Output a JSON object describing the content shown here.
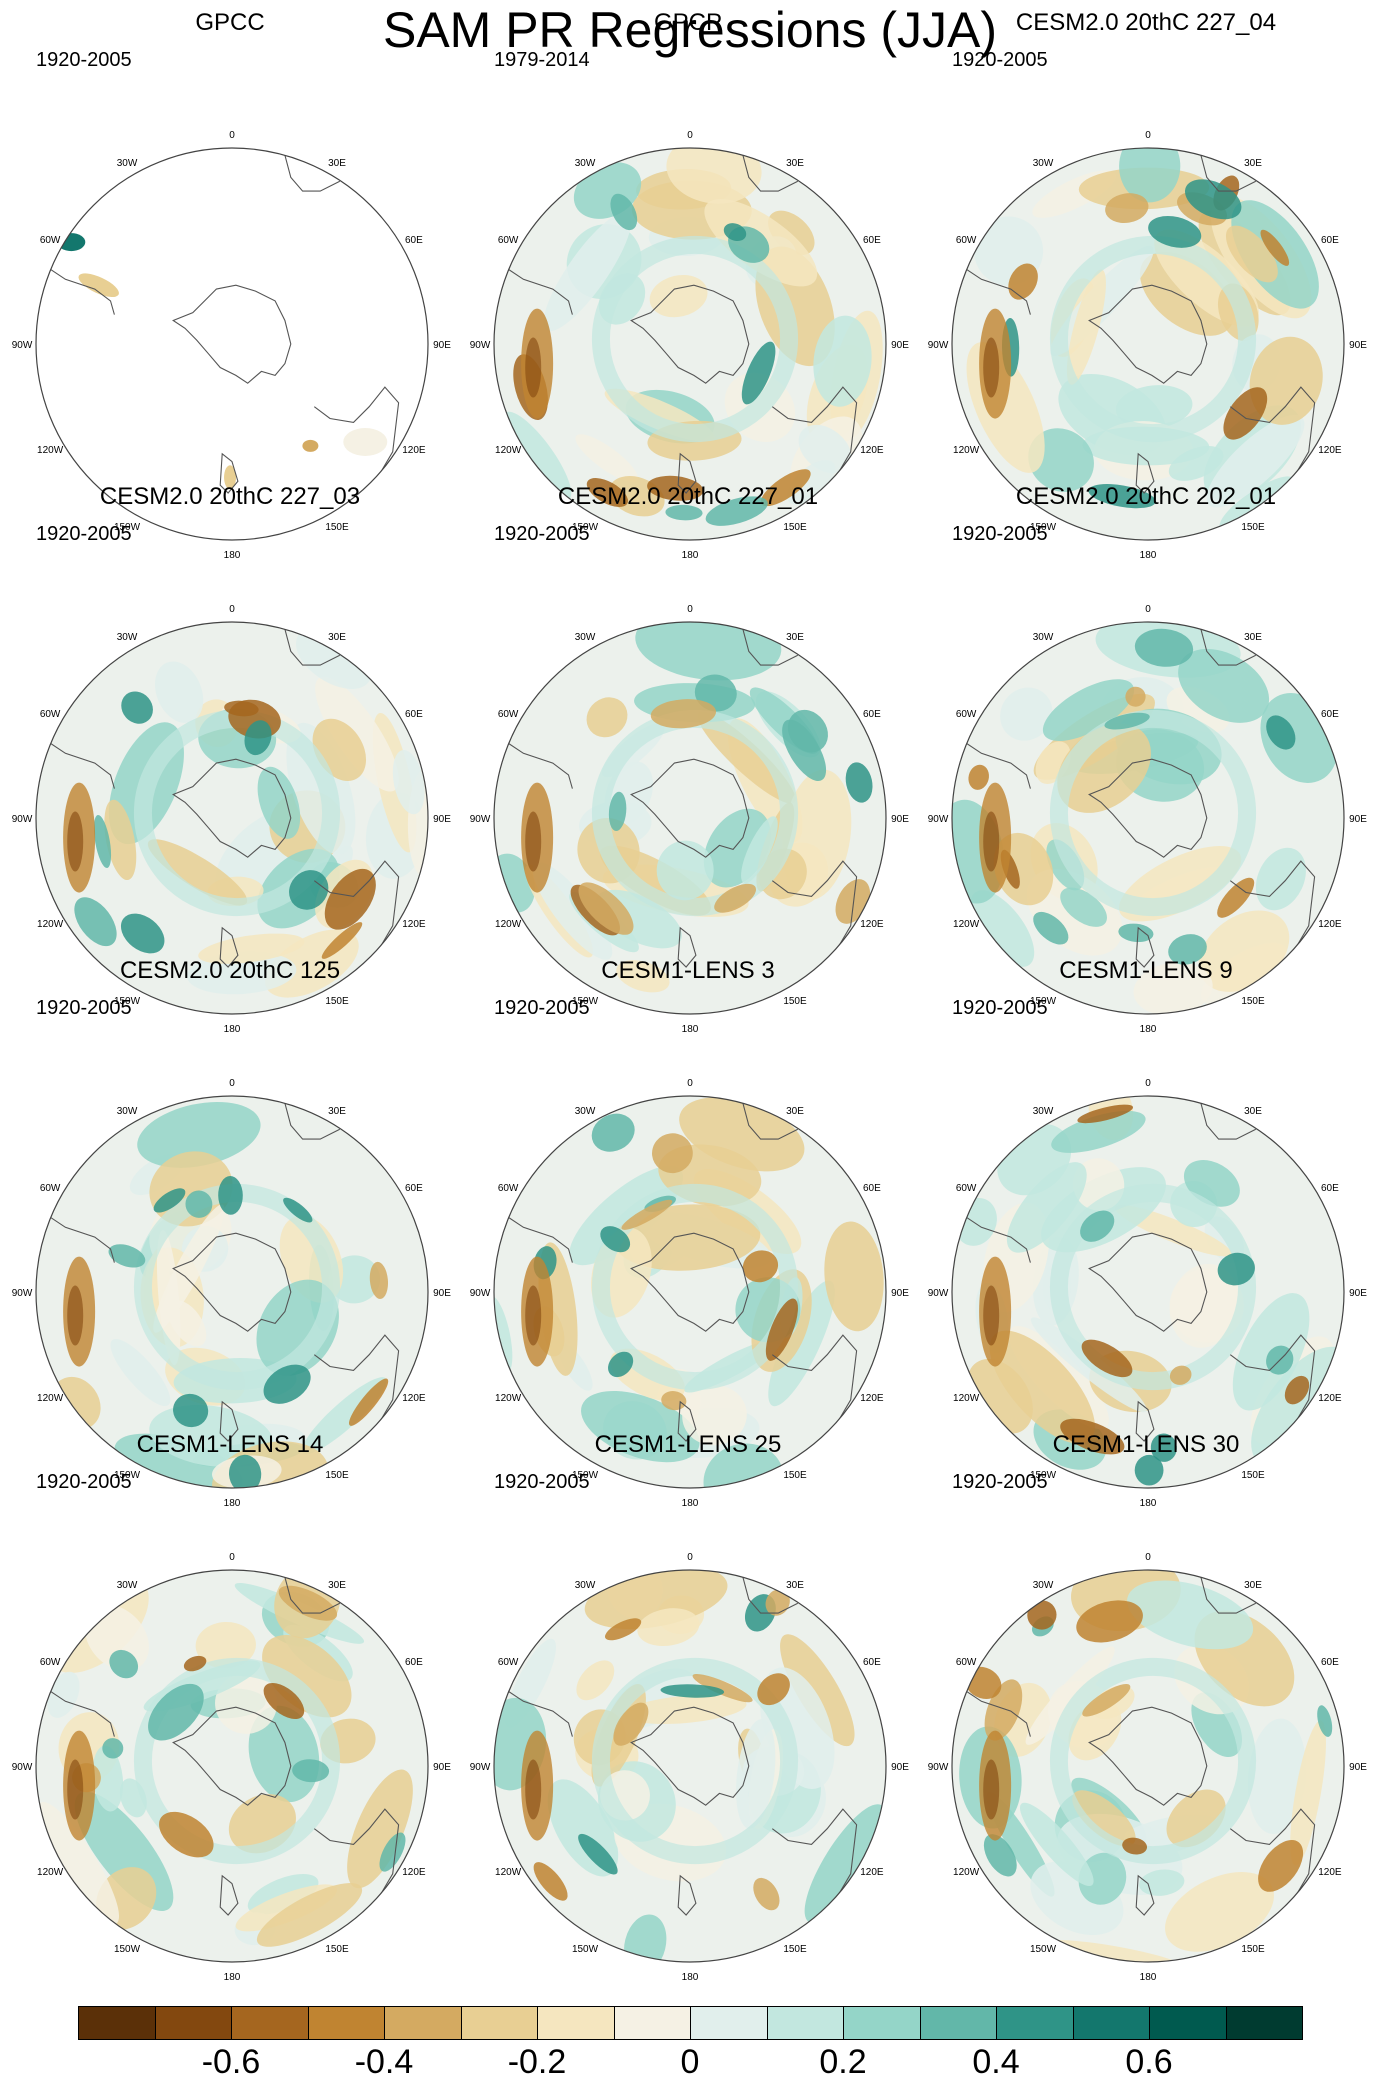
{
  "title": "SAM PR Regressions (JJA)",
  "panels": [
    {
      "title": "GPCC",
      "period": "1920-2005",
      "ocean_data": false
    },
    {
      "title": "GPCP",
      "period": "1979-2014",
      "ocean_data": true
    },
    {
      "title": "CESM2.0 20thC 227_04",
      "period": "1920-2005",
      "ocean_data": true
    },
    {
      "title": "CESM2.0 20thC 227_03",
      "period": "1920-2005",
      "ocean_data": true
    },
    {
      "title": "CESM2.0 20thC 227_01",
      "period": "1920-2005",
      "ocean_data": true
    },
    {
      "title": "CESM2.0 20thC 202_01",
      "period": "1920-2005",
      "ocean_data": true
    },
    {
      "title": "CESM2.0 20thC 125",
      "period": "1920-2005",
      "ocean_data": true
    },
    {
      "title": "CESM1-LENS 3",
      "period": "1920-2005",
      "ocean_data": true
    },
    {
      "title": "CESM1-LENS 9",
      "period": "1920-2005",
      "ocean_data": true
    },
    {
      "title": "CESM1-LENS 14",
      "period": "1920-2005",
      "ocean_data": true
    },
    {
      "title": "CESM1-LENS 25",
      "period": "1920-2005",
      "ocean_data": true
    },
    {
      "title": "CESM1-LENS 30",
      "period": "1920-2005",
      "ocean_data": true
    }
  ],
  "longitude_labels": [
    "0",
    "30E",
    "60E",
    "90E",
    "120E",
    "150E",
    "180",
    "150W",
    "120W",
    "90W",
    "60W",
    "30W"
  ],
  "colorbar": {
    "colors": [
      "#5b3008",
      "#83480f",
      "#a5661f",
      "#c08431",
      "#d4aa61",
      "#e8cf93",
      "#f5e6bf",
      "#f5f1e4",
      "#e1efec",
      "#c2e7df",
      "#94d5c8",
      "#62b7a9",
      "#2f9487",
      "#13776d",
      "#005a4f",
      "#003b30"
    ],
    "tick_labels": [
      "-0.6",
      "-0.4",
      "-0.2",
      "0",
      "0.2",
      "0.4",
      "0.6"
    ],
    "tick_values": [
      -0.6,
      -0.4,
      -0.2,
      0,
      0.2,
      0.4,
      0.6
    ],
    "levels": [
      -0.7,
      -0.6,
      -0.5,
      -0.4,
      -0.3,
      -0.2,
      -0.1,
      0,
      0.1,
      0.2,
      0.3,
      0.4,
      0.5,
      0.6,
      0.7
    ]
  }
}
